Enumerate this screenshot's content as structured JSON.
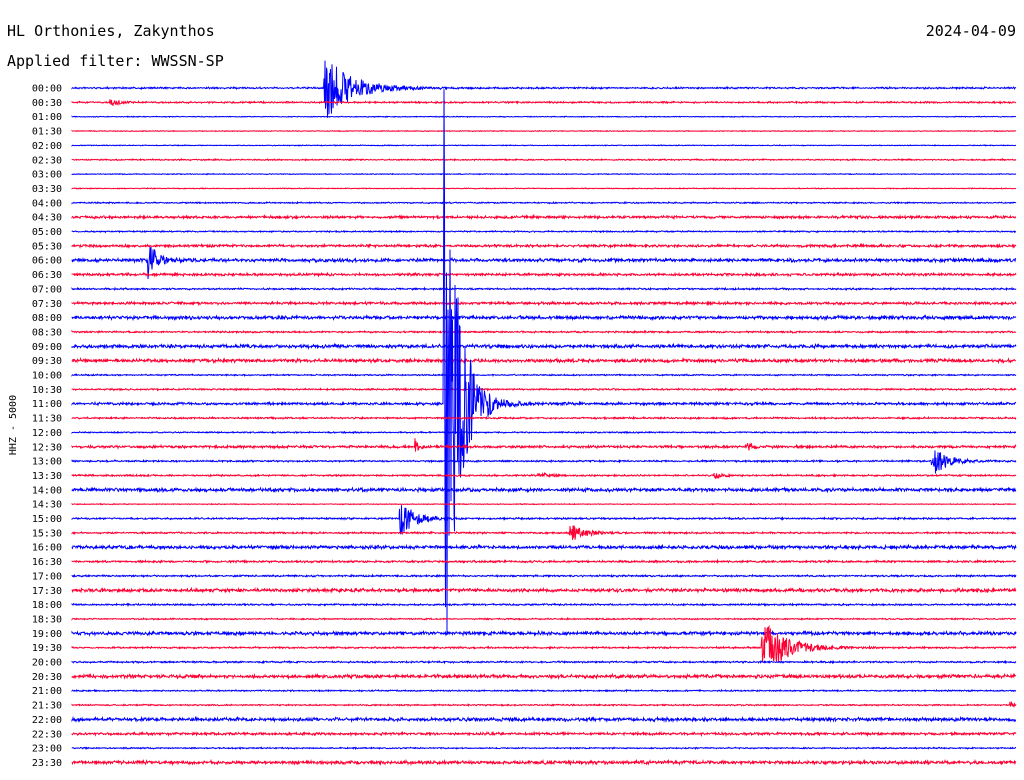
{
  "header": {
    "station": "HL Orthonies, Zakynthos",
    "date": "2024-04-09",
    "filter": "Applied filter: WWSSN-SP"
  },
  "channel_label": "HHZ - 5000",
  "colors": {
    "blue": "#0000ff",
    "red": "#ff0033"
  },
  "chart_data": {
    "type": "line",
    "title": "HL Orthonies, Zakynthos",
    "subtitle": "Applied filter: WWSSN-SP",
    "ylabel": "HHZ - 5000",
    "xlabel": "",
    "row_labels": [
      "00:00",
      "00:30",
      "01:00",
      "01:30",
      "02:00",
      "02:30",
      "03:00",
      "03:30",
      "04:00",
      "04:30",
      "05:00",
      "05:30",
      "06:00",
      "06:30",
      "07:00",
      "07:30",
      "08:00",
      "08:30",
      "09:00",
      "09:30",
      "10:00",
      "10:30",
      "11:00",
      "11:30",
      "12:00",
      "12:30",
      "13:00",
      "13:30",
      "14:00",
      "14:30",
      "15:00",
      "15:30",
      "16:00",
      "16:30",
      "17:00",
      "17:30",
      "18:00",
      "18:30",
      "19:00",
      "19:30",
      "20:00",
      "20:30",
      "21:00",
      "21:30",
      "22:00",
      "22:30",
      "23:00",
      "23:30"
    ],
    "row_minutes": 30,
    "trace_colors": [
      "blue",
      "red"
    ],
    "noise_level": [
      1,
      1,
      0.5,
      0.5,
      0.5,
      0.8,
      0.5,
      0.5,
      0.8,
      1.5,
      0.8,
      1.5,
      2,
      1.5,
      1,
      1.5,
      2,
      1,
      2,
      2,
      0.8,
      1,
      1.5,
      1,
      0.8,
      1.5,
      1,
      1,
      2,
      0.5,
      1,
      1,
      2,
      1.2,
      1,
      2,
      1,
      0.8,
      2,
      1,
      1,
      2,
      0.8,
      0.8,
      2,
      1.5,
      0.8,
      2
    ],
    "events": [
      {
        "row": 0,
        "minute": 8.0,
        "amplitude": 35,
        "duration_min": 2.3
      },
      {
        "row": 1,
        "minute": 1.2,
        "amplitude": 5,
        "duration_min": 0.6
      },
      {
        "row": 12,
        "minute": 2.4,
        "amplitude": 22,
        "duration_min": 0.7
      },
      {
        "row": 22,
        "minute": 11.8,
        "amplitude": 360,
        "duration_min": 1.2
      },
      {
        "row": 25,
        "minute": 10.9,
        "amplitude": 8,
        "duration_min": 0.3
      },
      {
        "row": 25,
        "minute": 21.4,
        "amplitude": 5,
        "duration_min": 0.5
      },
      {
        "row": 26,
        "minute": 27.3,
        "amplitude": 18,
        "duration_min": 1.2
      },
      {
        "row": 27,
        "minute": 14.8,
        "amplitude": 3,
        "duration_min": 0.8
      },
      {
        "row": 27,
        "minute": 20.4,
        "amplitude": 3,
        "duration_min": 0.8
      },
      {
        "row": 30,
        "minute": 10.4,
        "amplitude": 20,
        "duration_min": 1.3
      },
      {
        "row": 31,
        "minute": 15.8,
        "amplitude": 10,
        "duration_min": 1.2
      },
      {
        "row": 39,
        "minute": 21.9,
        "amplitude": 30,
        "duration_min": 2.0
      },
      {
        "row": 43,
        "minute": 29.8,
        "amplitude": 4,
        "duration_min": 0.3
      }
    ]
  }
}
